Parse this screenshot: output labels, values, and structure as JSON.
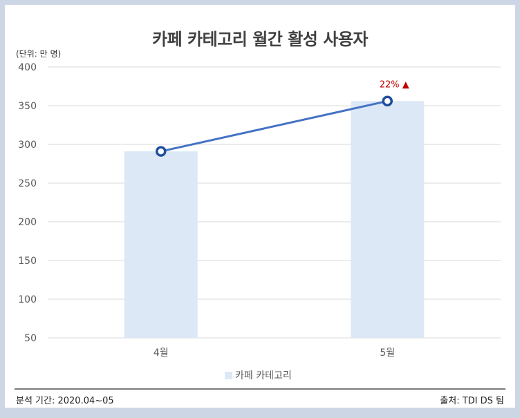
{
  "chart_data": {
    "type": "bar",
    "title": "카페 카테고리 월간 활성 사용자",
    "unit_label": "(단위: 만 명)",
    "categories": [
      "4월",
      "5월"
    ],
    "series": [
      {
        "name": "카페 카테고리",
        "values": [
          291,
          356
        ]
      }
    ],
    "line_overlay": {
      "values": [
        291,
        356
      ]
    },
    "ylim": [
      50,
      400
    ],
    "yticks": [
      50,
      100,
      150,
      200,
      250,
      300,
      350,
      400
    ],
    "annotation": {
      "category": "5월",
      "text": "22% ▲"
    },
    "grid": true,
    "legend_position": "bottom"
  },
  "footer": {
    "left": "분석 기간: 2020.04~05",
    "right": "출처: TDI DS 팀"
  },
  "colors": {
    "bar": "#dce8f6",
    "line": "#4472c4",
    "marker_stroke": "#1f4e9c",
    "annotation": "#c00000",
    "background": "#cdd6e4"
  }
}
